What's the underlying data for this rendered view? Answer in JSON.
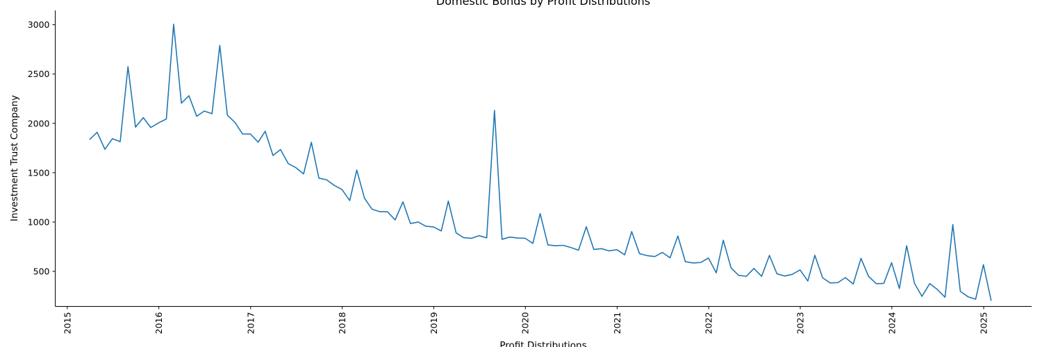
{
  "chart_data": {
    "type": "line",
    "title": "Domestic Bonds by Profit Distributions",
    "xlabel": "Profit Distributions",
    "ylabel": "Investment Trust Company",
    "x_ticks": [
      "2015",
      "2016",
      "2017",
      "2018",
      "2019",
      "2020",
      "2021",
      "2022",
      "2023",
      "2024",
      "2025"
    ],
    "y_ticks": [
      500,
      1000,
      1500,
      2000,
      2500,
      3000
    ],
    "xlim": [
      "2014-11-14",
      "2025-07-11"
    ],
    "ylim": [
      145,
      3145
    ],
    "grid": false,
    "line_color": "#1f77b4",
    "series": [
      {
        "name": "",
        "x": [
          "2015-03-31",
          "2015-04-30",
          "2015-05-31",
          "2015-06-30",
          "2015-07-31",
          "2015-08-31",
          "2015-09-30",
          "2015-10-31",
          "2015-11-30",
          "2015-12-31",
          "2016-01-31",
          "2016-02-29",
          "2016-03-31",
          "2016-04-30",
          "2016-05-31",
          "2016-06-30",
          "2016-07-31",
          "2016-08-31",
          "2016-09-30",
          "2016-10-31",
          "2016-11-30",
          "2016-12-31",
          "2017-01-31",
          "2017-02-28",
          "2017-03-31",
          "2017-04-30",
          "2017-05-31",
          "2017-06-30",
          "2017-07-31",
          "2017-08-31",
          "2017-09-30",
          "2017-10-31",
          "2017-11-30",
          "2017-12-31",
          "2018-01-31",
          "2018-02-28",
          "2018-03-31",
          "2018-04-30",
          "2018-05-31",
          "2018-06-30",
          "2018-07-31",
          "2018-08-31",
          "2018-09-30",
          "2018-10-31",
          "2018-11-30",
          "2018-12-31",
          "2019-01-31",
          "2019-02-28",
          "2019-03-31",
          "2019-04-30",
          "2019-05-31",
          "2019-06-30",
          "2019-07-31",
          "2019-08-31",
          "2019-09-30",
          "2019-10-31",
          "2019-11-30",
          "2019-12-31",
          "2020-01-31",
          "2020-02-29",
          "2020-03-31",
          "2020-04-30",
          "2020-05-31",
          "2020-06-30",
          "2020-07-31",
          "2020-08-31",
          "2020-09-30",
          "2020-10-31",
          "2020-11-30",
          "2020-12-31",
          "2021-01-31",
          "2021-02-28",
          "2021-03-31",
          "2021-04-30",
          "2021-05-31",
          "2021-06-30",
          "2021-07-31",
          "2021-08-31",
          "2021-09-30",
          "2021-10-31",
          "2021-11-30",
          "2021-12-31",
          "2022-01-31",
          "2022-02-28",
          "2022-03-31",
          "2022-04-30",
          "2022-05-31",
          "2022-06-30",
          "2022-07-31",
          "2022-08-31",
          "2022-09-30",
          "2022-10-31",
          "2022-11-30",
          "2022-12-31",
          "2023-01-31",
          "2023-02-28",
          "2023-03-31",
          "2023-04-30",
          "2023-05-31",
          "2023-06-30",
          "2023-07-31",
          "2023-08-31",
          "2023-09-30",
          "2023-10-31",
          "2023-11-30",
          "2023-12-31",
          "2024-01-31",
          "2024-02-29",
          "2024-03-31",
          "2024-04-30",
          "2024-05-31",
          "2024-06-30",
          "2024-07-31",
          "2024-08-31",
          "2024-09-30",
          "2024-10-31",
          "2024-11-30",
          "2024-12-31",
          "2025-01-31"
        ],
        "y": [
          1835,
          1910,
          1738,
          1845,
          1815,
          2575,
          1962,
          2058,
          1958,
          2005,
          2045,
          3005,
          2205,
          2280,
          2072,
          2125,
          2098,
          2790,
          2085,
          2008,
          1892,
          1893,
          1810,
          1920,
          1675,
          1735,
          1592,
          1552,
          1488,
          1808,
          1445,
          1428,
          1372,
          1330,
          1218,
          1527,
          1240,
          1130,
          1105,
          1105,
          1022,
          1205,
          985,
          1000,
          958,
          950,
          910,
          1213,
          890,
          842,
          835,
          862,
          840,
          2132,
          825,
          848,
          838,
          836,
          784,
          1085,
          768,
          760,
          764,
          742,
          715,
          952,
          722,
          730,
          708,
          720,
          668,
          903,
          680,
          660,
          650,
          692,
          638,
          858,
          598,
          585,
          590,
          635,
          485,
          816,
          536,
          460,
          450,
          530,
          450,
          662,
          475,
          453,
          470,
          515,
          402,
          663,
          435,
          383,
          386,
          437,
          372,
          632,
          450,
          375,
          378,
          588,
          326,
          760,
          380,
          247,
          376,
          317,
          238,
          975,
          298,
          242,
          218,
          568,
          202
        ]
      }
    ]
  }
}
